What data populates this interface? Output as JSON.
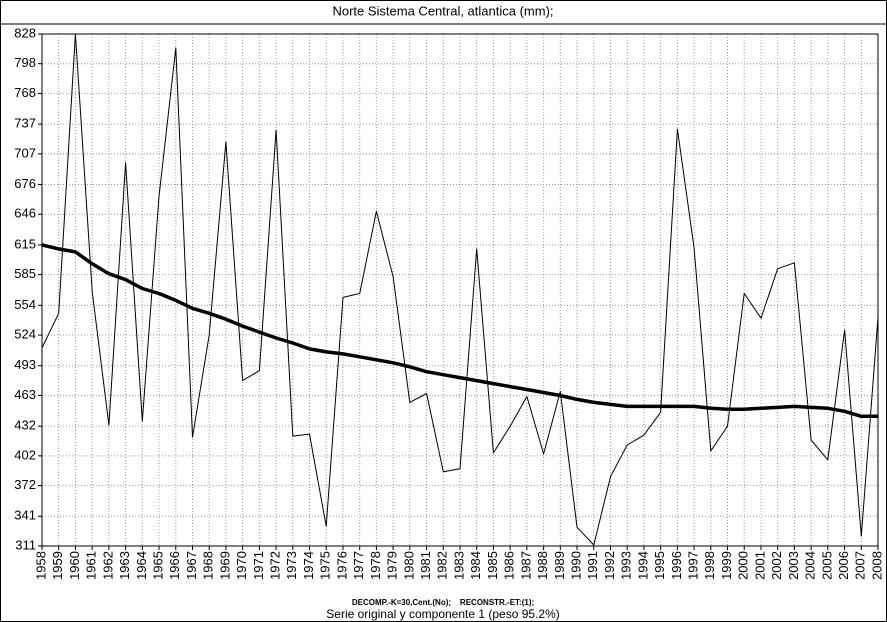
{
  "chart_data": {
    "type": "line",
    "title": "Norte Sistema Central, atlantica (mm);",
    "caption": "DECOMP.-K=30,Cent.(No);    RECONSTR.-ET:(1);",
    "x_label": "Serie original y componente 1 (peso 95.2%)",
    "x": [
      1958,
      1959,
      1960,
      1961,
      1962,
      1963,
      1964,
      1965,
      1966,
      1967,
      1968,
      1969,
      1970,
      1971,
      1972,
      1973,
      1974,
      1975,
      1976,
      1977,
      1978,
      1979,
      1980,
      1981,
      1982,
      1983,
      1984,
      1985,
      1986,
      1987,
      1988,
      1989,
      1990,
      1991,
      1992,
      1993,
      1994,
      1995,
      1996,
      1997,
      1998,
      1999,
      2000,
      2001,
      2002,
      2003,
      2004,
      2005,
      2006,
      2007,
      2008
    ],
    "series": [
      {
        "color": "#000000",
        "values": [
          511,
          546,
          828,
          568,
          433,
          698,
          437,
          664,
          814,
          421,
          524,
          719,
          478,
          488,
          731,
          422,
          424,
          331,
          562,
          566,
          649,
          583,
          456,
          465,
          386,
          389,
          611,
          405,
          432,
          462,
          404,
          467,
          330,
          312,
          381,
          413,
          423,
          446,
          732,
          612,
          407,
          432,
          566,
          541,
          591,
          597,
          418,
          398,
          529,
          321,
          542
        ]
      },
      {
        "color": "#000000",
        "values": [
          615,
          611,
          608,
          596,
          586,
          580,
          571,
          566,
          559,
          551,
          546,
          540,
          533,
          527,
          521,
          516,
          510,
          507,
          505,
          502,
          499,
          496,
          492,
          487,
          484,
          481,
          478,
          475,
          472,
          469,
          466,
          463,
          459,
          456,
          454,
          452,
          452,
          452,
          452,
          452,
          450,
          449,
          449,
          450,
          451,
          452,
          451,
          450,
          447,
          442,
          442
        ]
      }
    ],
    "xlim": [
      1958,
      2008
    ],
    "xticks": [
      1958,
      1959,
      1960,
      1961,
      1962,
      1963,
      1964,
      1965,
      1966,
      1967,
      1968,
      1969,
      1970,
      1971,
      1972,
      1973,
      1974,
      1975,
      1976,
      1977,
      1978,
      1979,
      1980,
      1981,
      1982,
      1983,
      1984,
      1985,
      1986,
      1987,
      1988,
      1989,
      1990,
      1991,
      1992,
      1993,
      1994,
      1995,
      1996,
      1997,
      1998,
      1999,
      2000,
      2001,
      2002,
      2003,
      2004,
      2005,
      2006,
      2007,
      2008
    ],
    "ylim": [
      311,
      828
    ],
    "yticks": [
      311,
      341,
      372,
      402,
      432,
      463,
      493,
      524,
      554,
      585,
      615,
      646,
      676,
      707,
      737,
      768,
      798,
      828
    ],
    "grid": true
  }
}
